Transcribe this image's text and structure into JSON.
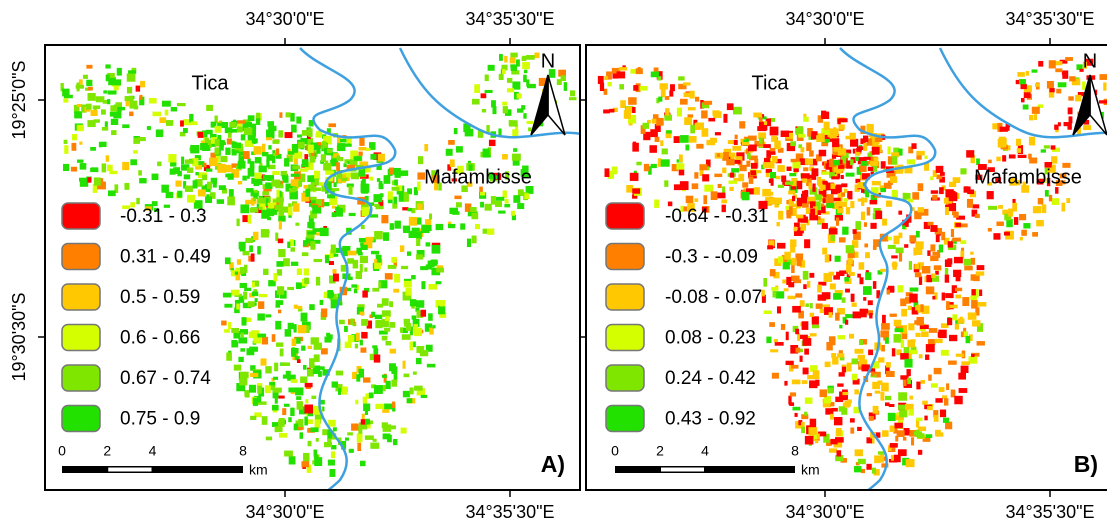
{
  "x_labels": [
    "34°30'0\"E",
    "34°35'30\"E"
  ],
  "y_labels": [
    "19°25'0\"S",
    "19°30'30\"S"
  ],
  "places": [
    "Tica",
    "Mafambisse"
  ],
  "north": "N",
  "scale": {
    "ticks": [
      "0",
      "2",
      "4",
      "8"
    ],
    "unit": "km"
  },
  "panels": [
    {
      "label": "A)",
      "legend": [
        {
          "label": "-0.31 - 0.3",
          "color": "#ff0000"
        },
        {
          "label": "0.31 - 0.49",
          "color": "#ff7f00"
        },
        {
          "label": "0.5 - 0.59",
          "color": "#ffc800"
        },
        {
          "label": "0.6 - 0.66",
          "color": "#d4ff00"
        },
        {
          "label": "0.67 - 0.74",
          "color": "#7fe600"
        },
        {
          "label": "0.75 - 0.9",
          "color": "#22e000"
        }
      ]
    },
    {
      "label": "B)",
      "legend": [
        {
          "label": "-0.64 - -0.31",
          "color": "#ff0000"
        },
        {
          "label": "-0.3 - -0.09",
          "color": "#ff7f00"
        },
        {
          "label": "-0.08 - 0.07",
          "color": "#ffc800"
        },
        {
          "label": "0.08 - 0.23",
          "color": "#d4ff00"
        },
        {
          "label": "0.24 - 0.42",
          "color": "#7fe600"
        },
        {
          "label": "0.43 - 0.92",
          "color": "#22e000"
        }
      ]
    }
  ]
}
